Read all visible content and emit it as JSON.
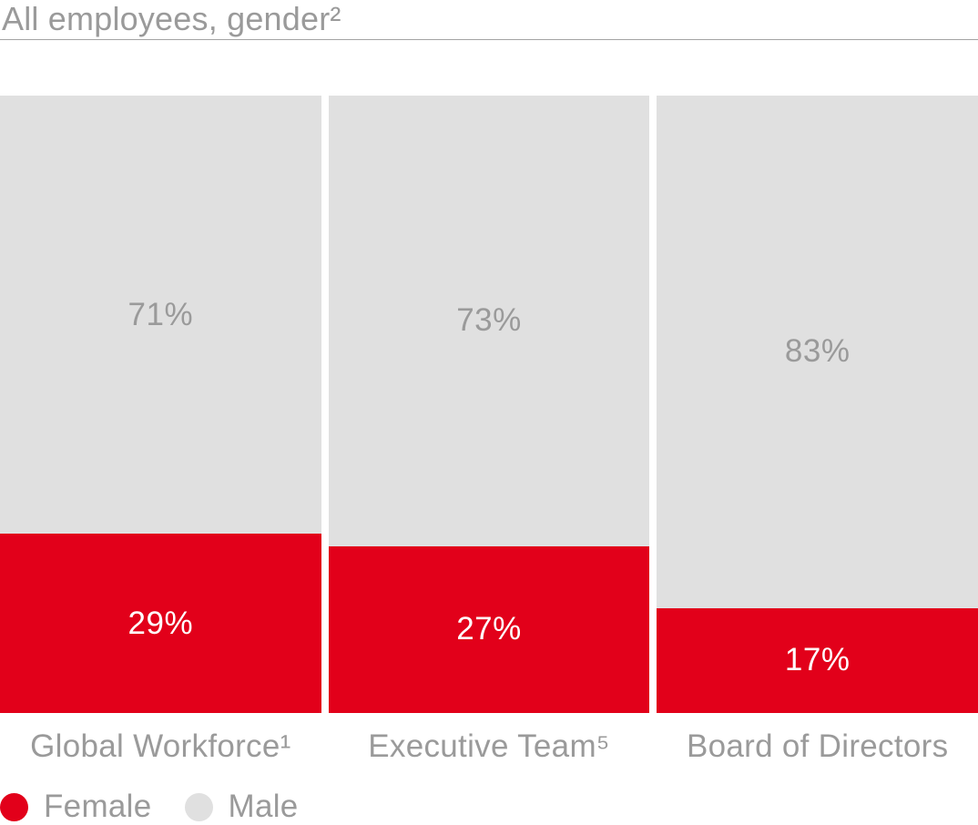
{
  "title": "All employees, gender²",
  "colors": {
    "female_red": "#e2001a",
    "male_gray": "#e0e0e0",
    "gray_text": "#9a9a9a",
    "white_text": "#ffffff",
    "rule_line": "#a4a4a4"
  },
  "legend": [
    {
      "label": "Female",
      "color": "#e2001a"
    },
    {
      "label": "Male",
      "color": "#e0e0e0"
    }
  ],
  "chart_data": {
    "type": "bar",
    "subtype": "stacked-100-percent",
    "orientation": "vertical",
    "title": "All employees, gender²",
    "categories": [
      "Global Workforce¹",
      "Executive Team⁵",
      "Board of Directors"
    ],
    "series": [
      {
        "name": "Female",
        "color": "#e2001a",
        "label_color": "#ffffff",
        "values": [
          29,
          27,
          17
        ]
      },
      {
        "name": "Male",
        "color": "#e0e0e0",
        "label_color": "#9a9a9a",
        "values": [
          71,
          73,
          83
        ]
      }
    ],
    "value_format": "percent",
    "value_suffix": "%",
    "ylim": [
      0,
      100
    ],
    "grid": false,
    "axes_visible": false,
    "legend_position": "bottom-left",
    "stack_order_bottom_to_top": [
      "Female",
      "Male"
    ]
  }
}
